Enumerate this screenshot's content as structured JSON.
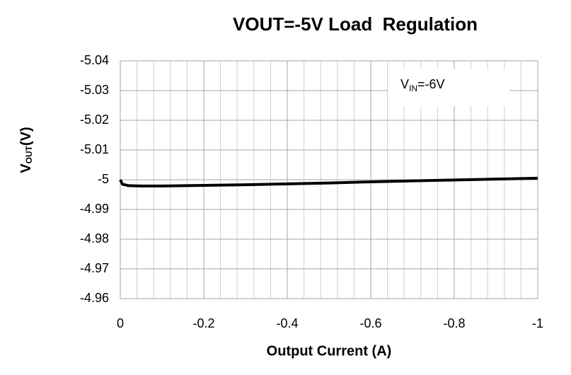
{
  "chart_data": {
    "type": "line",
    "title": "VOUT=-5V Load  Regulation",
    "x_label": "Output Current (A)",
    "y_label": [
      "V",
      "OUT",
      "(V)"
    ],
    "annotation": [
      "V",
      "IN",
      "=-6V"
    ],
    "x": [
      0,
      -0.005,
      -0.02,
      -0.05,
      -0.1,
      -0.2,
      -0.3,
      -0.4,
      -0.5,
      -0.6,
      -0.7,
      -0.8,
      -0.9,
      -1
    ],
    "series": [
      {
        "color": "#000000",
        "values": [
          -5.0,
          -4.9985,
          -4.998,
          -4.9979,
          -4.9979,
          -4.9981,
          -4.9983,
          -4.9986,
          -4.9989,
          -4.9993,
          -4.9996,
          -4.9999,
          -5.0002,
          -5.0005
        ]
      }
    ],
    "xlim": [
      0,
      -1
    ],
    "xticks": [
      0,
      -0.2,
      -0.4,
      -0.6,
      -0.8,
      -1
    ],
    "ylim": [
      -4.96,
      -5.04
    ],
    "yticks": [
      -5.04,
      -5.03,
      -5.02,
      -5.01,
      -5,
      -4.99,
      -4.98,
      -4.97,
      -4.96
    ],
    "grid": true,
    "minor_grid": true
  }
}
